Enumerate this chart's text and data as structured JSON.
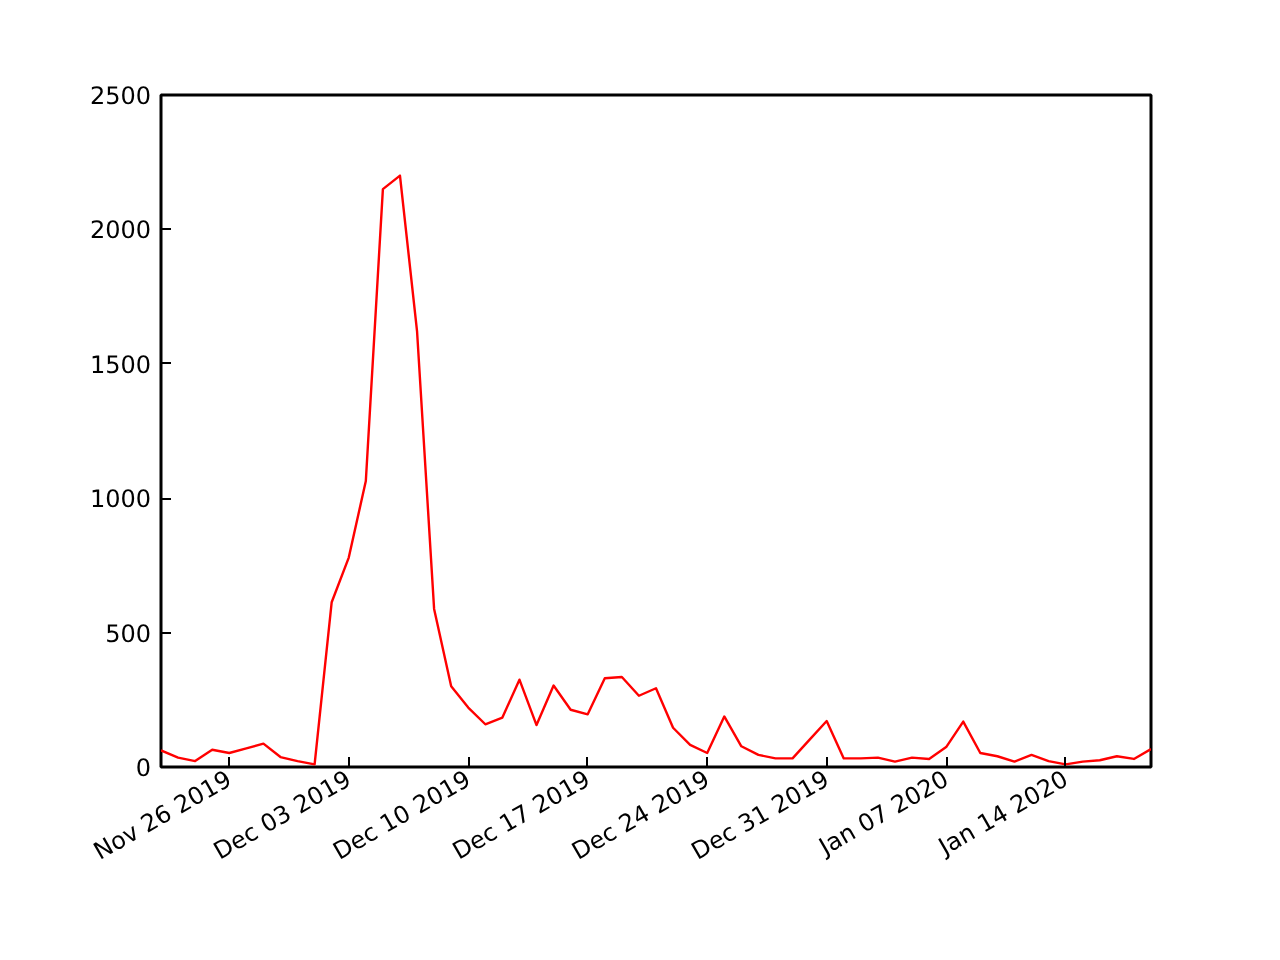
{
  "chart_data": {
    "type": "line",
    "x": [
      "2019-11-22",
      "2019-11-23",
      "2019-11-24",
      "2019-11-25",
      "2019-11-26",
      "2019-11-27",
      "2019-11-28",
      "2019-11-29",
      "2019-11-30",
      "2019-12-01",
      "2019-12-02",
      "2019-12-03",
      "2019-12-04",
      "2019-12-05",
      "2019-12-06",
      "2019-12-07",
      "2019-12-08",
      "2019-12-09",
      "2019-12-10",
      "2019-12-11",
      "2019-12-12",
      "2019-12-13",
      "2019-12-14",
      "2019-12-15",
      "2019-12-16",
      "2019-12-17",
      "2019-12-18",
      "2019-12-19",
      "2019-12-20",
      "2019-12-21",
      "2019-12-22",
      "2019-12-23",
      "2019-12-24",
      "2019-12-25",
      "2019-12-26",
      "2019-12-27",
      "2019-12-28",
      "2019-12-29",
      "2019-12-30",
      "2019-12-31",
      "2020-01-01",
      "2020-01-02",
      "2020-01-03",
      "2020-01-04",
      "2020-01-05",
      "2020-01-06",
      "2020-01-07",
      "2020-01-08",
      "2020-01-09",
      "2020-01-10",
      "2020-01-11",
      "2020-01-12",
      "2020-01-13",
      "2020-01-14",
      "2020-01-15",
      "2020-01-16",
      "2020-01-17",
      "2020-01-18",
      "2020-01-19"
    ],
    "series": [
      {
        "color": "#ff0000",
        "values": [
          62,
          35,
          22,
          64,
          52,
          69,
          87,
          37,
          22,
          10,
          613,
          779,
          1064,
          2150,
          2200,
          1622,
          588,
          300,
          221,
          159,
          184,
          325,
          156,
          303,
          213,
          196,
          330,
          335,
          265,
          293,
          146,
          82,
          52,
          188,
          77,
          45,
          32,
          32,
          102,
          171,
          32,
          32,
          35,
          20,
          35,
          30,
          74,
          169,
          52,
          40,
          20,
          45,
          22,
          10,
          20,
          25,
          40,
          30,
          67
        ]
      }
    ],
    "xlim": [
      "2019-11-22",
      "2020-01-19"
    ],
    "xticks": [
      {
        "value": "2019-11-26",
        "label": "Nov 26 2019"
      },
      {
        "value": "2019-12-03",
        "label": "Dec 03 2019"
      },
      {
        "value": "2019-12-10",
        "label": "Dec 10 2019"
      },
      {
        "value": "2019-12-17",
        "label": "Dec 17 2019"
      },
      {
        "value": "2019-12-24",
        "label": "Dec 24 2019"
      },
      {
        "value": "2019-12-31",
        "label": "Dec 31 2019"
      },
      {
        "value": "2020-01-07",
        "label": "Jan 07 2020"
      },
      {
        "value": "2020-01-14",
        "label": "Jan 14 2020"
      }
    ],
    "ylim": [
      0,
      2500
    ],
    "yticks": [
      0,
      500,
      1000,
      1500,
      2000,
      2500
    ],
    "grid": false,
    "marker": "none",
    "line_style": "solid"
  }
}
